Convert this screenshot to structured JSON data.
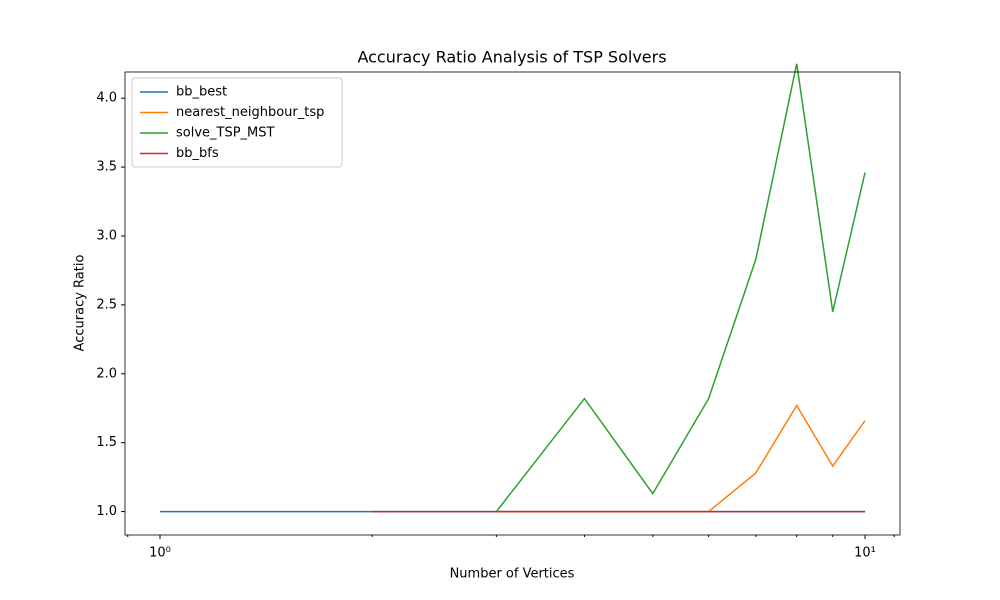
{
  "chart_data": {
    "type": "line",
    "title": "Accuracy Ratio Analysis of TSP Solvers",
    "xlabel": "Number of Vertices",
    "ylabel": "Accuracy Ratio",
    "x": [
      1,
      2,
      3,
      4,
      5,
      6,
      7,
      8,
      9,
      10
    ],
    "series": [
      {
        "name": "bb_best",
        "color": "#1f77b4",
        "values": [
          1,
          1,
          1,
          1,
          1,
          1,
          1,
          1,
          1,
          1
        ]
      },
      {
        "name": "nearest_neighbour_tsp",
        "color": "#ff7f0e",
        "values": [
          null,
          null,
          1,
          1,
          1,
          1,
          1.28,
          1.77,
          1.33,
          1.66
        ]
      },
      {
        "name": "solve_TSP_MST",
        "color": "#2ca02c",
        "values": [
          null,
          null,
          1,
          1.82,
          1.13,
          1.82,
          2.83,
          4.25,
          2.45,
          3.46
        ]
      },
      {
        "name": "bb_bfs",
        "color": "#d62728",
        "values": [
          null,
          1,
          1,
          1,
          1,
          1,
          1,
          1,
          1,
          1
        ]
      }
    ],
    "xscale": "log",
    "xlim": [
      0.892,
      11.21
    ],
    "xticks": [
      {
        "value": 1,
        "label": "10⁰"
      },
      {
        "value": 10,
        "label": "10¹"
      }
    ],
    "xminorticks": [
      0.9,
      2,
      3,
      4,
      5,
      6,
      7,
      8,
      9,
      11
    ],
    "ylim": [
      0.83,
      4.19
    ],
    "yticks": [
      {
        "value": 1,
        "label": "1.0"
      },
      {
        "value": 1.5,
        "label": "1.5"
      },
      {
        "value": 2,
        "label": "2.0"
      },
      {
        "value": 2.5,
        "label": "2.5"
      },
      {
        "value": 3,
        "label": "3.0"
      },
      {
        "value": 3.5,
        "label": "3.5"
      },
      {
        "value": 4,
        "label": "4.0"
      }
    ],
    "grid": false,
    "legend": "upper left"
  }
}
